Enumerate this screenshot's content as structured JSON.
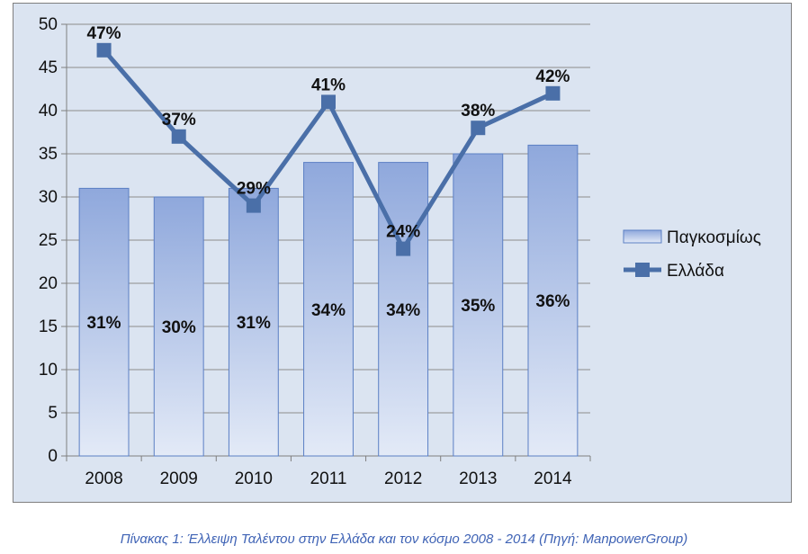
{
  "chart_data": {
    "type": "bar",
    "categories": [
      "2008",
      "2009",
      "2010",
      "2011",
      "2012",
      "2013",
      "2014"
    ],
    "series": [
      {
        "name": "Παγκοσμίως",
        "kind": "bar",
        "values": [
          31,
          30,
          31,
          34,
          34,
          35,
          36
        ],
        "labels": [
          "31%",
          "30%",
          "31%",
          "34%",
          "34%",
          "35%",
          "36%"
        ],
        "color": "#9db3e0"
      },
      {
        "name": "Ελλάδα",
        "kind": "line",
        "values": [
          47,
          37,
          29,
          41,
          24,
          38,
          42
        ],
        "labels": [
          "47%",
          "37%",
          "29%",
          "41%",
          "24%",
          "38%",
          "42%"
        ],
        "color": "#4a6fa8"
      }
    ],
    "y_ticks": [
      "0",
      "5",
      "10",
      "15",
      "20",
      "25",
      "30",
      "35",
      "40",
      "45",
      "50"
    ],
    "ylim": [
      0,
      50
    ],
    "grid": true,
    "legend_position": "right",
    "background_color": "#dbe4f1"
  },
  "caption": "Πίνακας 1: Έλλειψη Ταλέντου στην Ελλάδα και τον κόσμο 2008 - 2014 (Πηγή: ManpowerGroup)"
}
